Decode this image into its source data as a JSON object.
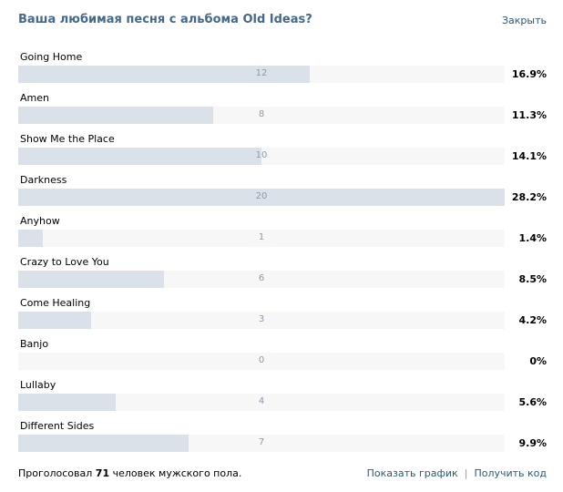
{
  "header": {
    "title": "Ваша любимая песня с альбома Old Ideas?",
    "close_label": "Закрыть"
  },
  "poll": {
    "options": [
      {
        "label": "Going Home",
        "count": "12",
        "percent": "16.9%",
        "share": 0.6
      },
      {
        "label": "Amen",
        "count": "8",
        "percent": "11.3%",
        "share": 0.4
      },
      {
        "label": "Show Me the Place",
        "count": "10",
        "percent": "14.1%",
        "share": 0.5
      },
      {
        "label": "Darkness",
        "count": "20",
        "percent": "28.2%",
        "share": 1.0
      },
      {
        "label": "Anyhow",
        "count": "1",
        "percent": "1.4%",
        "share": 0.05
      },
      {
        "label": "Crazy to Love You",
        "count": "6",
        "percent": "8.5%",
        "share": 0.3
      },
      {
        "label": "Come Healing",
        "count": "3",
        "percent": "4.2%",
        "share": 0.15
      },
      {
        "label": "Banjo",
        "count": "0",
        "percent": "0%",
        "share": 0.0
      },
      {
        "label": "Lullaby",
        "count": "4",
        "percent": "5.6%",
        "share": 0.2
      },
      {
        "label": "Different Sides",
        "count": "7",
        "percent": "9.9%",
        "share": 0.35
      }
    ]
  },
  "footer": {
    "voted_prefix": "Проголосовал ",
    "voted_count": "71",
    "voted_suffix": " человек мужского пола.",
    "show_chart_label": "Показать график",
    "separator": "|",
    "get_code_label": "Получить код"
  }
}
